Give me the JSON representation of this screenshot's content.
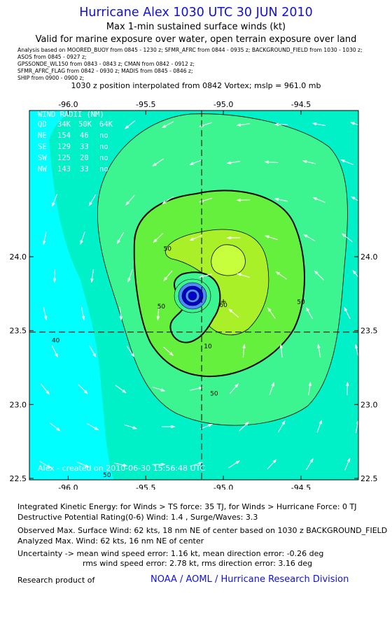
{
  "header": {
    "title": "Hurricane Alex 1030 UTC 30 JUN 2010",
    "subtitle": "Max 1-min sustained surface winds (kt)",
    "valid": "Valid for marine exposure over water, open terrain exposure over land",
    "analysis_lines": [
      "Analysis based on   MOORED_BUOY from 0845 - 1230 z;   SFMR_AFRC from 0844 - 0935 z;   BACKGROUND_FIELD from 1030 - 1030 z;",
      "ASOS from 0845 - 0927 z;",
      "GPSSONDE_WL150 from 0843 - 0843 z;   CMAN from 0842 - 0912 z;",
      "SFMR_AFRC_FLAG from 0842 - 0930 z;   MADIS from 0845 - 0846 z;",
      "SHIP from 0900 - 0900 z;"
    ],
    "position": "1030 z position interpolated from 0842 Vortex; mslp = 961.0 mb"
  },
  "chart_data": {
    "type": "contour",
    "title": "Hurricane Alex 1030 UTC 30 JUN 2010",
    "units": "kt",
    "xlim": [
      -96.25,
      -94.13
    ],
    "ylim": [
      22.49,
      24.99
    ],
    "x_ticks": [
      "-96.0",
      "-95.5",
      "-95.0",
      "-94.5"
    ],
    "x_tick_values": [
      -96.0,
      -95.5,
      -95.0,
      -94.5
    ],
    "y_ticks": [
      "22.5",
      "23.0",
      "23.5",
      "24.0"
    ],
    "y_tick_values": [
      22.5,
      23.0,
      23.5,
      24.0
    ],
    "center": {
      "lon": -95.14,
      "lat": 23.49
    },
    "max_wind_marker": {
      "lon": -95.0,
      "lat": 23.7,
      "symbol": "+"
    },
    "contour_labels": [
      {
        "text": "40",
        "lon": -96.08,
        "lat": 23.42
      },
      {
        "text": "50",
        "lon": -95.36,
        "lat": 24.04
      },
      {
        "text": "50",
        "lon": -95.4,
        "lat": 23.65
      },
      {
        "text": "50",
        "lon": -94.5,
        "lat": 23.68
      },
      {
        "text": "50",
        "lon": -95.06,
        "lat": 23.06
      },
      {
        "text": "60",
        "lon": -95.0,
        "lat": 23.66
      },
      {
        "text": "10",
        "lon": -95.1,
        "lat": 23.38
      },
      {
        "text": "50",
        "lon": -95.75,
        "lat": 22.51
      }
    ],
    "levels": [
      10,
      20,
      30,
      34,
      40,
      50,
      60
    ],
    "colors": {
      "background": "#00ffff",
      "band_34": "#00f0c8",
      "band_40": "#3cf590",
      "band_50": "#64f03c",
      "band_55": "#aaf028",
      "band_60": "#c8ff3c",
      "eye_dark": "#0000cc",
      "eye_light": "#4c8cff",
      "title": "#1010e0",
      "link": "#1010e0"
    },
    "wind_radii": {
      "title": "WIND RADII (NM)",
      "header": [
        "QD",
        "34K",
        "50K",
        "64K"
      ],
      "rows": [
        [
          "NE",
          "154",
          "46",
          "no"
        ],
        [
          "SE",
          "129",
          "33",
          "no"
        ],
        [
          "SW",
          "125",
          "20",
          "no"
        ],
        [
          "NW",
          "143",
          "33",
          "no"
        ]
      ]
    },
    "credit": "Alex - created on 2010-06-30 15:56:48 UTC"
  },
  "footer": {
    "ike": "Integrated Kinetic Energy:  for Winds > TS force: 35 TJ,  for Winds > Hurricane Force: 0 TJ",
    "dpr": "Destructive Potential Rating(0-6)   Wind: 1.4 , Surge/Waves: 3.3",
    "observed": "Observed Max. Surface Wind: 62 kts, 18 nm NE of center based on 1030 z BACKGROUND_FIELD",
    "analyzed": "Analyzed Max. Wind: 62 kts, 16 nm NE of center",
    "uncertainty1": "Uncertainty -> mean wind speed error: 1.16 kt,   mean direction error:  -0.26 deg",
    "uncertainty2": "rms wind speed error: 2.78 kt,   rms direction error: 3.16 deg",
    "research": "Research product of",
    "org": "NOAA / AOML / Hurricane Research Division"
  }
}
